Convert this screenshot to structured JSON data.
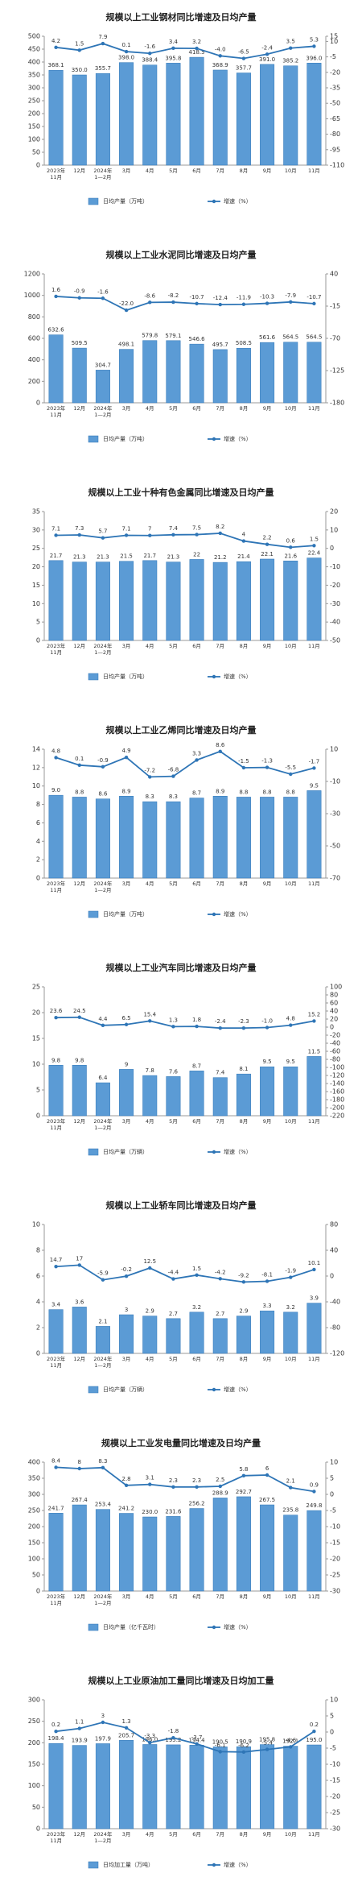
{
  "chart_data": [
    {
      "type": "combo",
      "title": "规模以上工业钢材同比增速及日均产量",
      "categories": [
        "2023年\n11月",
        "12月",
        "2024年\n1—2月",
        "3月",
        "4月",
        "5月",
        "6月",
        "7月",
        "8月",
        "9月",
        "10月",
        "11月"
      ],
      "series": [
        {
          "name": "日均产量（万吨）",
          "type": "bar",
          "color": "#5b9bd5",
          "values": [
            368.1,
            350.0,
            355.7,
            398.0,
            388.4,
            395.8,
            418.5,
            368.9,
            357.7,
            391.0,
            385.2,
            396.0
          ],
          "value_labels": [
            "368.1",
            "350.0",
            "355.7",
            "398.0",
            "388.4",
            "395.8",
            "418.5",
            "368.9",
            "357.7",
            "391.0",
            "385.2",
            "396.0"
          ]
        },
        {
          "name": "增速（%）",
          "type": "line",
          "axis": "y2",
          "color": "#2e75b6",
          "values": [
            4.2,
            1.5,
            7.9,
            0.1,
            -1.6,
            3.4,
            3.2,
            -4.0,
            -6.5,
            -2.4,
            3.5,
            5.3
          ],
          "value_labels": [
            "4.2",
            "1.5",
            "7.9",
            "0.1",
            "-1.6",
            "3.4",
            "3.2",
            "-4.0",
            "-6.5",
            "-2.4",
            "3.5",
            "5.3"
          ]
        }
      ],
      "ylim": [
        0,
        500
      ],
      "yticks": [
        0,
        50,
        100,
        150,
        200,
        250,
        300,
        350,
        400,
        450,
        500
      ],
      "y2lim": [
        -110,
        15
      ],
      "y2ticks": [
        15,
        10,
        -5,
        -20,
        -35,
        -50,
        -65,
        -80,
        -95,
        -110
      ]
    },
    {
      "type": "combo",
      "title": "规模以上工业水泥同比增速及日均产量",
      "categories": [
        "2023年\n11月",
        "12月",
        "2024年\n1—2月",
        "3月",
        "4月",
        "5月",
        "6月",
        "7月",
        "8月",
        "9月",
        "10月",
        "11月"
      ],
      "series": [
        {
          "name": "日均产量（万吨）",
          "type": "bar",
          "color": "#5b9bd5",
          "values": [
            632.6,
            509.5,
            304.7,
            498.1,
            579.8,
            579.1,
            546.6,
            495.7,
            508.5,
            561.6,
            564.5,
            564.5
          ]
        },
        {
          "name": "增速（%）",
          "type": "line",
          "axis": "y2",
          "color": "#2e75b6",
          "values": [
            1.6,
            -0.9,
            -1.6,
            -22.0,
            -8.6,
            -8.2,
            -10.7,
            -12.4,
            -11.9,
            -10.3,
            -7.9,
            -10.7
          ],
          "value_labels": [
            "1.6",
            "-0.9",
            "-1.6",
            "-22.0",
            "-8.6",
            "-8.2",
            "-10.7",
            "-12.4",
            "-11.9",
            "-10.3",
            "-7.9",
            "-10.7"
          ]
        }
      ],
      "ylim": [
        0,
        1200
      ],
      "yticks": [
        0,
        200,
        400,
        600,
        800,
        1000,
        1200
      ],
      "y2lim": [
        -180,
        40
      ],
      "y2ticks": [
        40,
        -15,
        -70,
        -125,
        -180
      ]
    },
    {
      "type": "combo",
      "title": "规模以上工业十种有色金属同比增速及日均产量",
      "categories": [
        "2023年\n11月",
        "12月",
        "2024年\n1—2月",
        "3月",
        "4月",
        "5月",
        "6月",
        "7月",
        "8月",
        "9月",
        "10月",
        "11月"
      ],
      "series": [
        {
          "name": "日均产量（万吨）",
          "type": "bar",
          "color": "#5b9bd5",
          "values": [
            21.7,
            21.3,
            21.3,
            21.5,
            21.7,
            21.3,
            22.0,
            21.2,
            21.4,
            22.1,
            21.6,
            22.4
          ]
        },
        {
          "name": "增速（%）",
          "type": "line",
          "axis": "y2",
          "color": "#2e75b6",
          "values": [
            7.1,
            7.3,
            5.7,
            7.1,
            7.0,
            7.4,
            7.5,
            8.2,
            4.0,
            2.2,
            0.6,
            1.5
          ]
        }
      ],
      "ylim": [
        0,
        35
      ],
      "yticks": [
        0,
        5,
        10,
        15,
        20,
        25,
        30,
        35
      ],
      "y2lim": [
        -50,
        20
      ],
      "y2ticks": [
        20,
        10,
        0,
        -10,
        -20,
        -30,
        -40,
        -50
      ]
    },
    {
      "type": "combo",
      "title": "规模以上工业乙烯同比增速及日均产量",
      "categories": [
        "2023年\n11月",
        "12月",
        "2024年\n1—2月",
        "3月",
        "4月",
        "5月",
        "6月",
        "7月",
        "8月",
        "9月",
        "10月",
        "11月"
      ],
      "series": [
        {
          "name": "日均产量（万吨）",
          "type": "bar",
          "color": "#5b9bd5",
          "values": [
            9.0,
            8.8,
            8.6,
            8.9,
            8.3,
            8.3,
            8.7,
            8.9,
            8.8,
            8.8,
            8.8,
            9.5
          ],
          "value_labels": [
            "9.0",
            "8.8",
            "8.6",
            "8.9",
            "8.3",
            "8.3",
            "8.7",
            "8.9",
            "8.8",
            "8.8",
            "8.8",
            "9.5"
          ]
        },
        {
          "name": "增速（%）",
          "type": "line",
          "axis": "y2",
          "color": "#2e75b6",
          "values": [
            4.8,
            0.1,
            -0.9,
            4.9,
            -7.2,
            -6.8,
            3.3,
            8.6,
            -1.5,
            -1.3,
            -5.5,
            -1.7
          ]
        }
      ],
      "ylim": [
        0,
        14
      ],
      "yticks": [
        0,
        2,
        4,
        6,
        8,
        10,
        12,
        14
      ],
      "y2lim": [
        -70,
        10
      ],
      "y2ticks": [
        10,
        -10,
        -30,
        -50,
        -70
      ]
    },
    {
      "type": "combo",
      "title": "规模以上工业汽车同比增速及日均产量",
      "categories": [
        "2023年\n11月",
        "12月",
        "2024年\n1—2月",
        "3月",
        "4月",
        "5月",
        "6月",
        "7月",
        "8月",
        "9月",
        "10月",
        "11月"
      ],
      "series": [
        {
          "name": "日均产量（万辆）",
          "type": "bar",
          "color": "#5b9bd5",
          "values": [
            9.8,
            9.8,
            6.4,
            9.0,
            7.8,
            7.6,
            8.7,
            7.4,
            8.1,
            9.5,
            9.5,
            11.5
          ]
        },
        {
          "name": "增速（%）",
          "type": "line",
          "axis": "y2",
          "color": "#2e75b6",
          "values": [
            23.6,
            24.5,
            4.4,
            6.5,
            15.4,
            1.3,
            1.8,
            -2.4,
            -2.3,
            -1.0,
            4.8,
            15.2
          ],
          "value_labels": [
            "23.6",
            "24.5",
            "4.4",
            "6.5",
            "15.4",
            "1.3",
            "1.8",
            "-2.4",
            "-2.3",
            "-1.0",
            "4.8",
            "15.2"
          ]
        }
      ],
      "ylim": [
        0,
        25
      ],
      "yticks": [
        0,
        5,
        10,
        15,
        20,
        25
      ],
      "y2lim": [
        -220,
        100
      ],
      "y2ticks": [
        100,
        80,
        60,
        40,
        20,
        0,
        -20,
        -40,
        -60,
        -80,
        -100,
        -120,
        -140,
        -160,
        -180,
        -200,
        -220
      ]
    },
    {
      "type": "combo",
      "title": "规模以上工业轿车同比增速及日均产量",
      "categories": [
        "2023年\n11月",
        "12月",
        "2024年\n1—2月",
        "3月",
        "4月",
        "5月",
        "6月",
        "7月",
        "8月",
        "9月",
        "10月",
        "11月"
      ],
      "series": [
        {
          "name": "日均产量（万辆）",
          "type": "bar",
          "color": "#5b9bd5",
          "values": [
            3.4,
            3.6,
            2.1,
            3.0,
            2.9,
            2.7,
            3.2,
            2.7,
            2.9,
            3.3,
            3.2,
            3.9
          ]
        },
        {
          "name": "增速（%）",
          "type": "line",
          "axis": "y2",
          "color": "#2e75b6",
          "values": [
            14.7,
            17.0,
            -5.9,
            -0.2,
            12.5,
            -4.4,
            1.5,
            -4.2,
            -9.2,
            -8.1,
            -1.9,
            10.1
          ]
        }
      ],
      "ylim": [
        0,
        10
      ],
      "yticks": [
        0,
        2,
        4,
        6,
        8,
        10
      ],
      "y2lim": [
        -120,
        80
      ],
      "y2ticks": [
        80,
        40,
        0,
        -40,
        -80,
        -120
      ]
    },
    {
      "type": "combo",
      "title": "规模以上工业发电量同比增速及日均产量",
      "categories": [
        "2023年\n11月",
        "12月",
        "2024年\n1—2月",
        "3月",
        "4月",
        "5月",
        "6月",
        "7月",
        "8月",
        "9月",
        "10月",
        "11月"
      ],
      "series": [
        {
          "name": "日均产量（亿千瓦时）",
          "type": "bar",
          "color": "#5b9bd5",
          "values": [
            241.7,
            267.4,
            253.4,
            241.2,
            230.0,
            231.6,
            256.2,
            288.9,
            292.7,
            267.5,
            235.8,
            249.8
          ],
          "value_labels": [
            "241.7",
            "267.4",
            "253.4",
            "241.2",
            "230.0",
            "231.6",
            "256.2",
            "288.9",
            "292.7",
            "267.5",
            "235.8",
            "249.8"
          ]
        },
        {
          "name": "增速（%）",
          "type": "line",
          "axis": "y2",
          "color": "#2e75b6",
          "values": [
            8.4,
            8.0,
            8.3,
            2.8,
            3.1,
            2.3,
            2.3,
            2.5,
            5.8,
            6.0,
            2.1,
            0.9
          ]
        }
      ],
      "ylim": [
        0,
        400
      ],
      "yticks": [
        0,
        50,
        100,
        150,
        200,
        250,
        300,
        350,
        400
      ],
      "y2lim": [
        -30,
        10
      ],
      "y2ticks": [
        10,
        5,
        0,
        -5,
        -10,
        -15,
        -20,
        -25,
        -30
      ]
    },
    {
      "type": "combo",
      "title": "规模以上工业原油加工量同比增速及日均加工量",
      "categories": [
        "2023年\n11月",
        "12月",
        "2024年\n1—2月",
        "3月",
        "4月",
        "5月",
        "6月",
        "7月",
        "8月",
        "9月",
        "10月",
        "11月"
      ],
      "series": [
        {
          "name": "日均加工量（万吨）",
          "type": "bar",
          "color": "#5b9bd5",
          "values": [
            198.4,
            193.9,
            197.9,
            205.7,
            196.0,
            195.2,
            194.4,
            190.5,
            190.9,
            195.8,
            192.1,
            195.0
          ],
          "value_labels": [
            "198.4",
            "193.9",
            "197.9",
            "205.7",
            "196.0",
            "195.2",
            "194.4",
            "190.5",
            "190.9",
            "195.8",
            "192.1",
            "195.0"
          ]
        },
        {
          "name": "增速（%）",
          "type": "line",
          "axis": "y2",
          "color": "#2e75b6",
          "values": [
            0.2,
            1.1,
            3.0,
            1.3,
            -3.3,
            -1.8,
            -3.7,
            -6.1,
            -6.2,
            -5.4,
            -4.6,
            0.2
          ]
        }
      ],
      "ylim": [
        0,
        300
      ],
      "yticks": [
        0,
        50,
        100,
        150,
        200,
        250,
        300
      ],
      "y2lim": [
        -30,
        10
      ],
      "y2ticks": [
        10,
        5,
        0,
        -5,
        -10,
        -15,
        -20,
        -25,
        -30
      ]
    }
  ]
}
